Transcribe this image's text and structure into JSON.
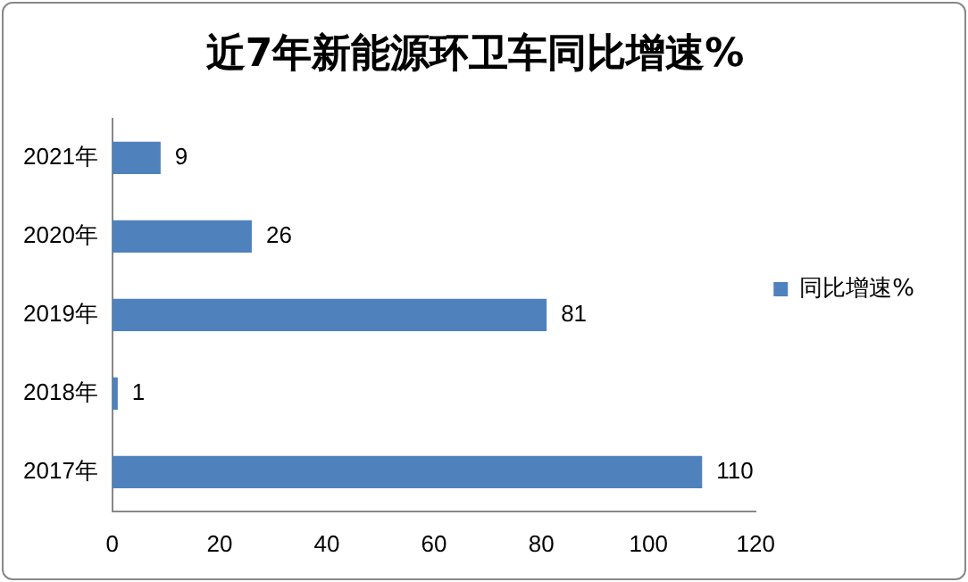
{
  "chart_data": {
    "type": "bar",
    "orientation": "horizontal",
    "title": "近7年新能源环卫车同比增速%",
    "categories": [
      "2021年",
      "2020年",
      "2019年",
      "2018年",
      "2017年"
    ],
    "series": [
      {
        "name": "同比增速%",
        "color": "#4f81bd",
        "values": [
          9,
          26,
          81,
          1,
          110
        ]
      }
    ],
    "xlim": [
      0,
      120
    ],
    "xticks": [
      0,
      20,
      40,
      60,
      80,
      100,
      120
    ],
    "grid": false,
    "legend": "right",
    "data_labels": true
  }
}
